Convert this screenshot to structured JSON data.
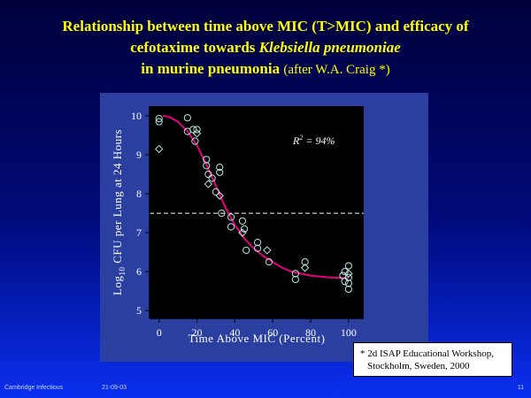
{
  "slide": {
    "title_line1": "Relationship between time above MIC (T>MIC) and efficacy of",
    "title_line2_pre": "cefotaxime towards ",
    "title_line2_italic": "Klebsiella pneumoniae",
    "title_line3": "in murine pneumonia",
    "title_line3_after": "(after W.A. Craig *)",
    "footnote_line1": "* 2d ISAP Educational Workshop,",
    "footnote_line2": "Stockholm, Sweden, 2000",
    "footer_left": "Cambridge Infectious",
    "footer_date": "21-09-03",
    "footer_page": "11"
  },
  "chart_data": {
    "type": "scatter",
    "xlabel": "Time Above MIC (Percent)",
    "ylabel_base": "Log",
    "ylabel_sub": "10",
    "ylabel_rest": " CFU per Lung at 24 Hours",
    "annotation_r2": "R",
    "annotation_sup": "2",
    "annotation_value": " = 94%",
    "xlim": [
      -5,
      108
    ],
    "ylim": [
      4.8,
      10.25
    ],
    "xticks": [
      0,
      20,
      40,
      60,
      80,
      100
    ],
    "yticks": [
      5,
      6,
      7,
      8,
      9,
      10
    ],
    "reference_line_y": 7.5,
    "grid": false,
    "points": [
      [
        0,
        9.93
      ],
      [
        0,
        9.85
      ],
      [
        0,
        9.15
      ],
      [
        15,
        9.95
      ],
      [
        15,
        9.6
      ],
      [
        18,
        9.65
      ],
      [
        19,
        9.35
      ],
      [
        20,
        9.55
      ],
      [
        20,
        9.65
      ],
      [
        25,
        8.88
      ],
      [
        25,
        8.72
      ],
      [
        26,
        8.5
      ],
      [
        26,
        8.25
      ],
      [
        28,
        8.4
      ],
      [
        30,
        8.05
      ],
      [
        32,
        8.68
      ],
      [
        32,
        8.55
      ],
      [
        32,
        7.95
      ],
      [
        33,
        7.5
      ],
      [
        38,
        7.4
      ],
      [
        38,
        7.15
      ],
      [
        44,
        7.3
      ],
      [
        44,
        7.0
      ],
      [
        45,
        7.1
      ],
      [
        46,
        6.55
      ],
      [
        52,
        6.75
      ],
      [
        52,
        6.6
      ],
      [
        57,
        6.55
      ],
      [
        58,
        6.25
      ],
      [
        72,
        5.95
      ],
      [
        72,
        5.8
      ],
      [
        77,
        6.25
      ],
      [
        77,
        6.1
      ],
      [
        97,
        5.9
      ],
      [
        98,
        6.0
      ],
      [
        98,
        5.75
      ],
      [
        100,
        6.15
      ],
      [
        100,
        5.95
      ],
      [
        100,
        5.85
      ],
      [
        100,
        5.7
      ],
      [
        100,
        5.55
      ]
    ],
    "fit_curve": [
      [
        2,
        10.0
      ],
      [
        5,
        9.98
      ],
      [
        10,
        9.85
      ],
      [
        15,
        9.6
      ],
      [
        20,
        9.25
      ],
      [
        25,
        8.75
      ],
      [
        30,
        8.2
      ],
      [
        35,
        7.65
      ],
      [
        40,
        7.2
      ],
      [
        45,
        6.85
      ],
      [
        50,
        6.6
      ],
      [
        55,
        6.4
      ],
      [
        60,
        6.25
      ],
      [
        65,
        6.1
      ],
      [
        70,
        6.0
      ],
      [
        75,
        5.95
      ],
      [
        80,
        5.9
      ],
      [
        90,
        5.85
      ],
      [
        100,
        5.84
      ]
    ],
    "colors": {
      "plot_bg": "#000000",
      "panel_bg": "#2a3fa0",
      "curve": "#e6007e",
      "marker": "#b8e8e0",
      "axis": "#000000",
      "reference_line": "#ffffff"
    }
  }
}
